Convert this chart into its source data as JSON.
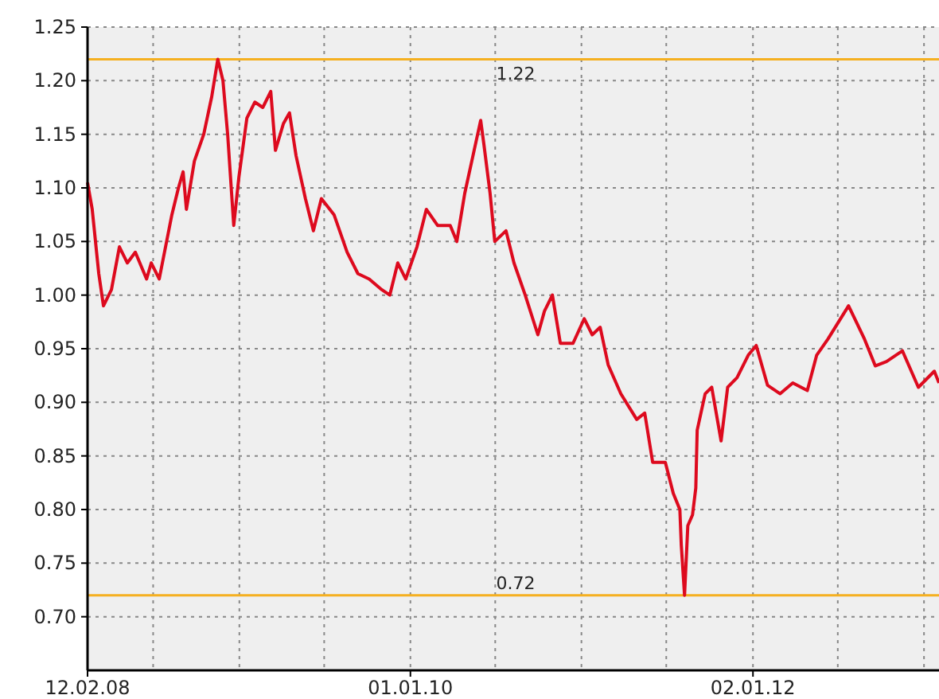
{
  "chart_data": {
    "type": "line",
    "xlim": [
      "2008-02-12",
      "2013-02-02"
    ],
    "ylim": [
      0.65,
      1.25
    ],
    "yticks": [
      {
        "value": 0.7,
        "label": "0.70"
      },
      {
        "value": 0.75,
        "label": "0.75"
      },
      {
        "value": 0.8,
        "label": "0.80"
      },
      {
        "value": 0.85,
        "label": "0.85"
      },
      {
        "value": 0.9,
        "label": "0.90"
      },
      {
        "value": 0.95,
        "label": "0.95"
      },
      {
        "value": 1.0,
        "label": "1.00"
      },
      {
        "value": 1.05,
        "label": "1.05"
      },
      {
        "value": 1.1,
        "label": "1.10"
      },
      {
        "value": 1.15,
        "label": "1.15"
      },
      {
        "value": 1.2,
        "label": "1.20"
      },
      {
        "value": 1.25,
        "label": "1.25"
      }
    ],
    "xticks": [
      {
        "value": "2008-02-12",
        "label": "12.02.08"
      },
      {
        "value": "2008-07-01",
        "label": null
      },
      {
        "value": "2009-01-01",
        "label": null
      },
      {
        "value": "2009-07-01",
        "label": null
      },
      {
        "value": "2010-01-01",
        "label": "01.01.10"
      },
      {
        "value": "2010-07-01",
        "label": null
      },
      {
        "value": "2011-01-01",
        "label": null
      },
      {
        "value": "2011-07-01",
        "label": null
      },
      {
        "value": "2012-01-02",
        "label": "02.01.12"
      },
      {
        "value": "2012-07-01",
        "label": null
      },
      {
        "value": "2013-01-01",
        "label": null
      }
    ],
    "grid": true,
    "marker": "none",
    "line_style": "solid",
    "ref_lines": [
      {
        "axis": "y",
        "value": 1.22,
        "label": "1.22",
        "color": "#f5b020"
      },
      {
        "axis": "y",
        "value": 0.72,
        "label": "0.72",
        "color": "#f5b020"
      }
    ],
    "x": [
      "2008-02-12",
      "2008-02-22",
      "2008-03-07",
      "2008-03-17",
      "2008-04-03",
      "2008-04-20",
      "2008-05-07",
      "2008-05-24",
      "2008-06-17",
      "2008-06-27",
      "2008-07-14",
      "2008-08-10",
      "2008-08-24",
      "2008-09-03",
      "2008-09-10",
      "2008-09-27",
      "2008-10-17",
      "2008-11-03",
      "2008-11-16",
      "2008-11-27",
      "2008-12-07",
      "2008-12-20",
      "2008-12-31",
      "2009-01-17",
      "2009-02-03",
      "2009-02-20",
      "2009-03-09",
      "2009-03-19",
      "2009-04-05",
      "2009-04-18",
      "2009-05-02",
      "2009-05-22",
      "2009-06-08",
      "2009-06-25",
      "2009-07-22",
      "2009-08-19",
      "2009-09-11",
      "2009-10-05",
      "2009-11-01",
      "2009-11-18",
      "2009-12-05",
      "2009-12-22",
      "2010-01-15",
      "2010-02-04",
      "2010-02-28",
      "2010-03-27",
      "2010-04-10",
      "2010-04-27",
      "2010-05-17",
      "2010-05-31",
      "2010-06-07",
      "2010-06-20",
      "2010-06-30",
      "2010-07-24",
      "2010-08-10",
      "2010-09-03",
      "2010-09-30",
      "2010-10-14",
      "2010-10-31",
      "2010-11-17",
      "2010-12-14",
      "2011-01-07",
      "2011-01-24",
      "2011-02-10",
      "2011-02-27",
      "2011-03-26",
      "2011-04-29",
      "2011-05-16",
      "2011-06-02",
      "2011-06-29",
      "2011-07-16",
      "2011-07-30",
      "2011-08-02",
      "2011-08-09",
      "2011-08-16",
      "2011-08-26",
      "2011-09-02",
      "2011-09-05",
      "2011-09-22",
      "2011-10-06",
      "2011-10-26",
      "2011-11-09",
      "2011-11-29",
      "2011-12-23",
      "2012-01-09",
      "2012-02-02",
      "2012-02-29",
      "2012-03-27",
      "2012-04-27",
      "2012-05-17",
      "2012-06-10",
      "2012-07-24",
      "2012-08-27",
      "2012-09-19",
      "2012-10-13",
      "2012-11-16",
      "2012-12-20",
      "2013-01-23",
      "2013-02-02"
    ],
    "series": [
      {
        "color": "#dd0a1e",
        "values": [
          1.105,
          1.08,
          1.02,
          0.99,
          1.005,
          1.045,
          1.03,
          1.04,
          1.015,
          1.03,
          1.015,
          1.075,
          1.1,
          1.115,
          1.08,
          1.125,
          1.15,
          1.185,
          1.22,
          1.2,
          1.15,
          1.065,
          1.11,
          1.165,
          1.18,
          1.175,
          1.19,
          1.135,
          1.16,
          1.17,
          1.13,
          1.09,
          1.06,
          1.09,
          1.075,
          1.04,
          1.02,
          1.015,
          1.005,
          1.0,
          1.03,
          1.015,
          1.045,
          1.08,
          1.065,
          1.065,
          1.05,
          1.095,
          1.135,
          1.163,
          1.14,
          1.095,
          1.05,
          1.06,
          1.03,
          1.0,
          0.963,
          0.985,
          1.0,
          0.955,
          0.955,
          0.978,
          0.963,
          0.97,
          0.935,
          0.908,
          0.884,
          0.89,
          0.844,
          0.844,
          0.815,
          0.8,
          0.767,
          0.72,
          0.785,
          0.795,
          0.82,
          0.874,
          0.908,
          0.914,
          0.864,
          0.914,
          0.923,
          0.944,
          0.953,
          0.916,
          0.908,
          0.918,
          0.911,
          0.944,
          0.959,
          0.99,
          0.959,
          0.934,
          0.938,
          0.948,
          0.914,
          0.929,
          0.918
        ]
      }
    ]
  }
}
